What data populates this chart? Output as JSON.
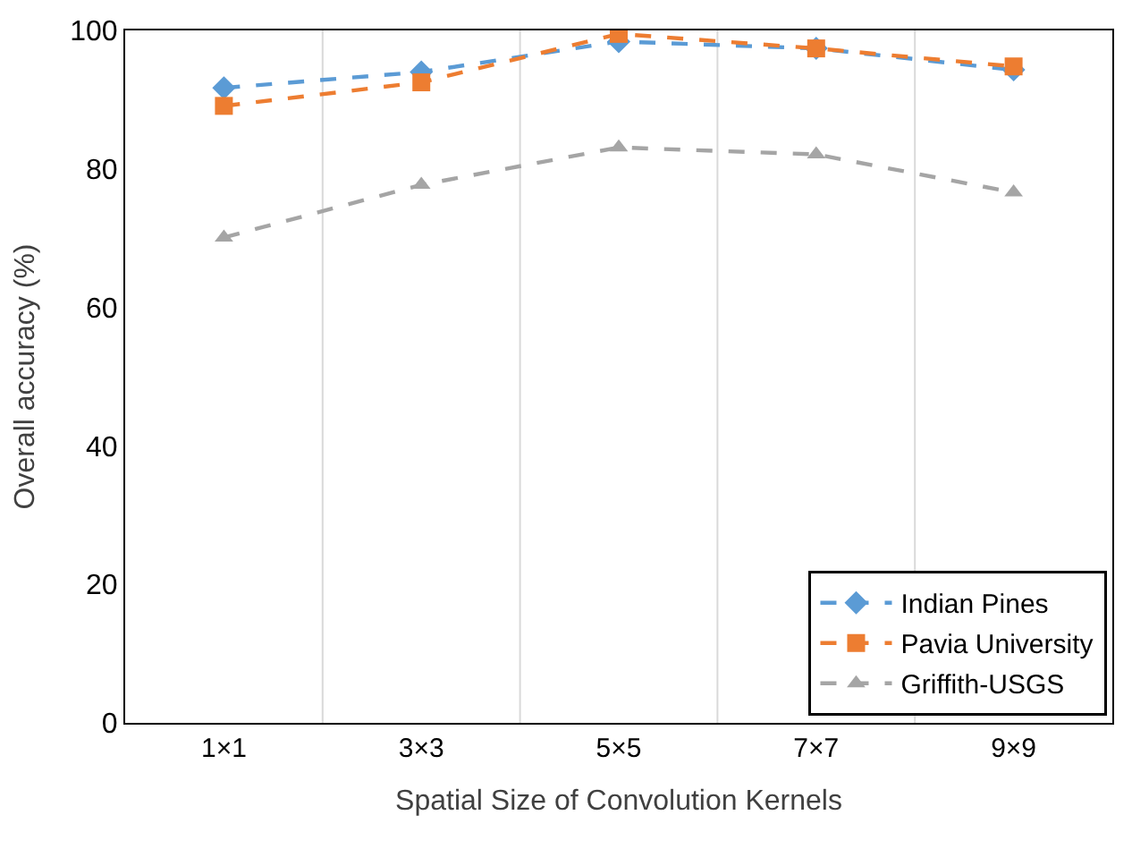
{
  "chart_data": {
    "type": "line",
    "xlabel": "Spatial Size of Convolution Kernels",
    "ylabel": "Overall accuracy (%)",
    "categories": [
      "1×1",
      "3×3",
      "5×5",
      "7×7",
      "9×9"
    ],
    "series": [
      {
        "name": "Indian Pines",
        "color": "#5b9bd5",
        "marker": "diamond",
        "values": [
          91.7,
          94.0,
          98.4,
          97.4,
          94.3
        ]
      },
      {
        "name": "Pavia University",
        "color": "#ed7d31",
        "marker": "square",
        "values": [
          89.1,
          92.5,
          99.5,
          97.4,
          94.8
        ]
      },
      {
        "name": "Griffith-USGS",
        "color": "#a5a5a5",
        "marker": "triangle",
        "values": [
          70.1,
          77.7,
          83.1,
          82.1,
          76.6
        ]
      }
    ],
    "ylim": [
      0,
      100
    ],
    "yticks": [
      0,
      20,
      40,
      60,
      80,
      100
    ],
    "grid": "x",
    "legend": "bottom right",
    "line_style": "dashed"
  }
}
